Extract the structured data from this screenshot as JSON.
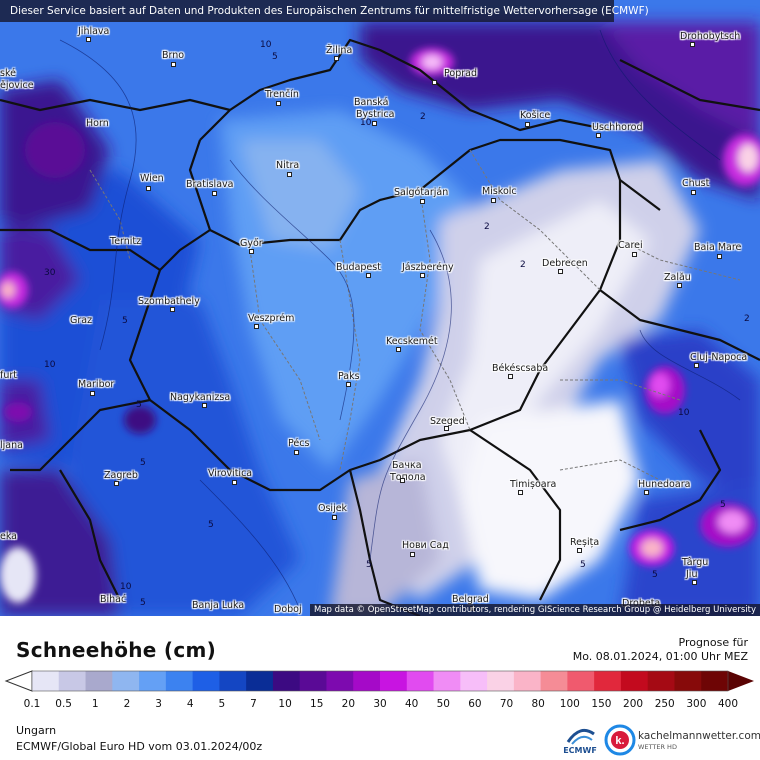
{
  "banner": "Dieser Service basiert auf Daten und Produkten des Europäischen Zentrums für mittelfristige Wettervorhersage (ECMWF)",
  "map_credit": "Map data © OpenStreetMap contributors, rendering GIScience Research Group @ Heidelberg University",
  "cities": [
    {
      "name": "Jihlava"
    },
    {
      "name": "Brno"
    },
    {
      "name": "Žilina"
    },
    {
      "name": "Poprad"
    },
    {
      "name": "Drohobytsch"
    },
    {
      "name": "ské"
    },
    {
      "name": "ějovice"
    },
    {
      "name": "Trenčín"
    },
    {
      "name": "Banská"
    },
    {
      "name": "Bystrica"
    },
    {
      "name": "Košice"
    },
    {
      "name": "Horn"
    },
    {
      "name": "Uschhorod"
    },
    {
      "name": "Nitra"
    },
    {
      "name": "Wien"
    },
    {
      "name": "Bratislava"
    },
    {
      "name": "Salgótarján"
    },
    {
      "name": "Miskolc"
    },
    {
      "name": "Chust"
    },
    {
      "name": "Ternitz"
    },
    {
      "name": "Győr"
    },
    {
      "name": "Carei"
    },
    {
      "name": "Baia Mare"
    },
    {
      "name": "Budapest"
    },
    {
      "name": "Jászberény"
    },
    {
      "name": "Debrecen"
    },
    {
      "name": "Szombathely"
    },
    {
      "name": "Zalău"
    },
    {
      "name": "Graz"
    },
    {
      "name": "Veszprém"
    },
    {
      "name": "Kecskemét"
    },
    {
      "name": "Cluj-Napoca"
    },
    {
      "name": "furt"
    },
    {
      "name": "Békéscsaba"
    },
    {
      "name": "Paks"
    },
    {
      "name": "Maribor"
    },
    {
      "name": "Nagykanizsa"
    },
    {
      "name": "Szeged"
    },
    {
      "name": "ljana"
    },
    {
      "name": "Pécs"
    },
    {
      "name": "Бачка"
    },
    {
      "name": "Топола"
    },
    {
      "name": "Zagreb"
    },
    {
      "name": "Virovitica"
    },
    {
      "name": "Timișoara"
    },
    {
      "name": "Hunedoara"
    },
    {
      "name": "Osijek"
    },
    {
      "name": "eka"
    },
    {
      "name": "Нови Сад"
    },
    {
      "name": "Reșița"
    },
    {
      "name": "Târgu"
    },
    {
      "name": "Jiu"
    },
    {
      "name": "Bihać"
    },
    {
      "name": "Banja Luka"
    },
    {
      "name": "Doboj"
    },
    {
      "name": "Belgrad"
    },
    {
      "name": "Drobeta"
    }
  ],
  "contour_labels": [
    "5",
    "2",
    "5",
    "5",
    "2",
    "30",
    "5",
    "10",
    "5",
    "2",
    "5",
    "10",
    "10",
    "2",
    "5",
    "5",
    "5",
    "5",
    "10",
    "10"
  ],
  "legend": {
    "title": "Schneehöhe (cm)",
    "prognose_label": "Prognose für",
    "prognose_time": "Mo. 08.01.2024, 01:00 Uhr MEZ",
    "colors": [
      "#e6e6f6",
      "#c8c8e6",
      "#a9a9cd",
      "#8fb6f0",
      "#64a0f5",
      "#3c82f0",
      "#1e5fe6",
      "#1446c3",
      "#0a2d96",
      "#3c0a82",
      "#5a0a96",
      "#7d0aaf",
      "#a50ac8",
      "#c814e1",
      "#e14bf0",
      "#f08cf5",
      "#f7bef9",
      "#fad2e6",
      "#fab4c8",
      "#f58c96",
      "#f05a6e",
      "#e1283c",
      "#c30a1e",
      "#a50a14",
      "#870a0a",
      "#6e0505"
    ],
    "ticks": [
      "0.1",
      "0.5",
      "1",
      "2",
      "3",
      "4",
      "5",
      "7",
      "10",
      "15",
      "20",
      "30",
      "40",
      "50",
      "60",
      "70",
      "80",
      "100",
      "150",
      "200",
      "250",
      "300",
      "400"
    ],
    "region": "Ungarn",
    "model": "ECMWF/Global Euro HD vom  03.01.2024/00z",
    "ecmwf_logo": "ECMWF",
    "brand": "kachelmannwetter.com",
    "brand_sub": "WETTER HD"
  }
}
